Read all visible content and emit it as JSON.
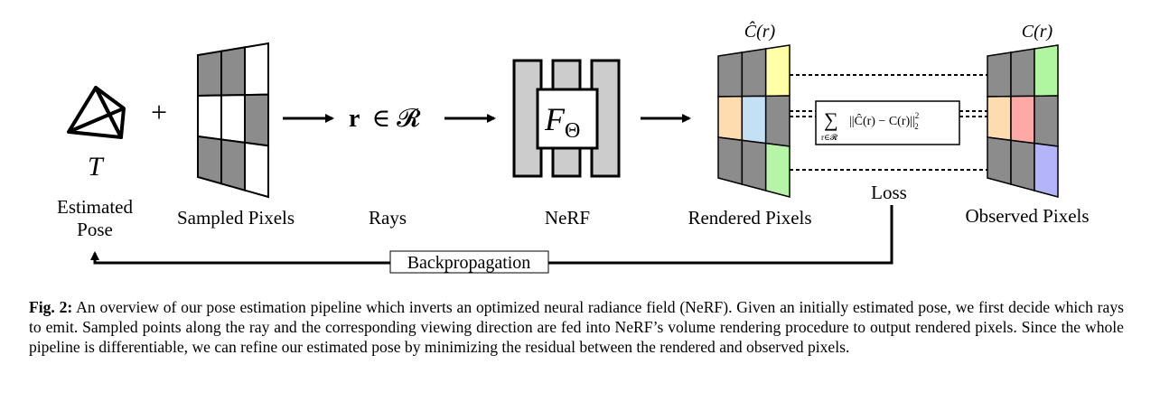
{
  "labels": {
    "estimated_pose_line1": "Estimated",
    "estimated_pose_line2": "Pose",
    "pose_symbol": "T",
    "plus": "+",
    "sampled_pixels": "Sampled Pixels",
    "rays": "Rays",
    "rays_math_r": "r",
    "rays_math_rest": "∈ 𝓡",
    "nerf": "NeRF",
    "nerf_symbol_f": "F",
    "nerf_symbol_theta": "Θ",
    "rendered_pixels": "Rendered Pixels",
    "rendered_math": "Ĉ(r)",
    "observed_pixels": "Observed Pixels",
    "observed_math": "C(r)",
    "loss": "Loss",
    "loss_formula_sum": "∑",
    "loss_formula_sub": "r∈𝓡",
    "loss_formula_body": "||Ĉ(r) − C(r)||",
    "loss_formula_sup": "2",
    "loss_formula_sub2": "2",
    "backprop": "Backpropagation"
  },
  "colors": {
    "gray": "#8c8c8c",
    "nerf_gray": "#cccccc",
    "yellow": "#ffffa8",
    "orange": "#ffdcb0",
    "blue": "#c4e0f4",
    "green_rendered": "#b6f5a8",
    "green_observed": "#b0f5a0",
    "red": "#ffa8a8",
    "purple": "#b4b4f8"
  },
  "caption": {
    "label": "Fig. 2:",
    "text": "An overview of our pose estimation pipeline which inverts an optimized neural radiance field (NeRF). Given an initially estimated pose, we first decide which rays to emit. Sampled points along the ray and the corresponding viewing direction are fed into NeRF’s volume rendering procedure to output rendered pixels. Since the whole pipeline is differentiable, we can refine our estimated pose by minimizing the residual between the rendered and observed pixels."
  }
}
